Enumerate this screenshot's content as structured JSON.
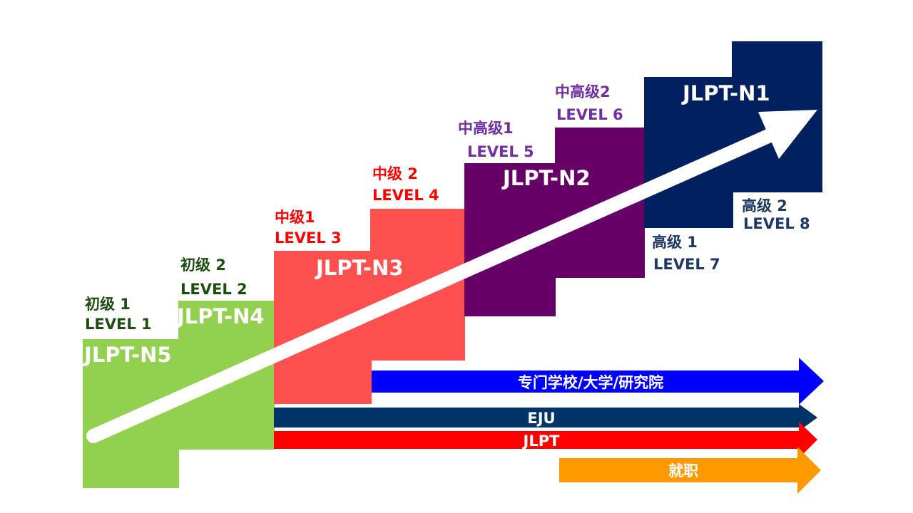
{
  "levels": [
    {
      "exam": "JLPT-N5",
      "stages": [
        {
          "cn": "初级 1",
          "en": "LEVEL 1"
        }
      ],
      "color": "#92d050"
    },
    {
      "exam": "JLPT-N4",
      "stages": [
        {
          "cn": "初级 2",
          "en": "LEVEL 2"
        }
      ],
      "color": "#92d050"
    },
    {
      "exam": "JLPT-N3",
      "stages": [
        {
          "cn": "中级1",
          "en": "LEVEL 3"
        },
        {
          "cn": "中级 2",
          "en": "LEVEL 4"
        }
      ],
      "color": "#ff5050"
    },
    {
      "exam": "JLPT-N2",
      "stages": [
        {
          "cn": "中高级1",
          "en": "LEVEL 5"
        },
        {
          "cn": "中高级2",
          "en": "LEVEL 6"
        }
      ],
      "color": "#660066"
    },
    {
      "exam": "JLPT-N1",
      "stages": [
        {
          "cn": "高级 1",
          "en": "LEVEL 7"
        },
        {
          "cn": "高级 2",
          "en": "LEVEL 8"
        }
      ],
      "color": "#002060"
    }
  ],
  "label_colors": {
    "beginner": "#1e4d12",
    "intermediate": "#ff0000",
    "upper": "#7030a0",
    "advanced": "#1f3864"
  },
  "tracks": [
    {
      "label": "专门学校/大学/研究院",
      "color": "#0000ff"
    },
    {
      "label": "EJU",
      "color": "#003366"
    },
    {
      "label": "JLPT",
      "color": "#ff0000"
    },
    {
      "label": "就职",
      "color": "#ff9900"
    }
  ],
  "progress_arrow_color": "#ffffff"
}
